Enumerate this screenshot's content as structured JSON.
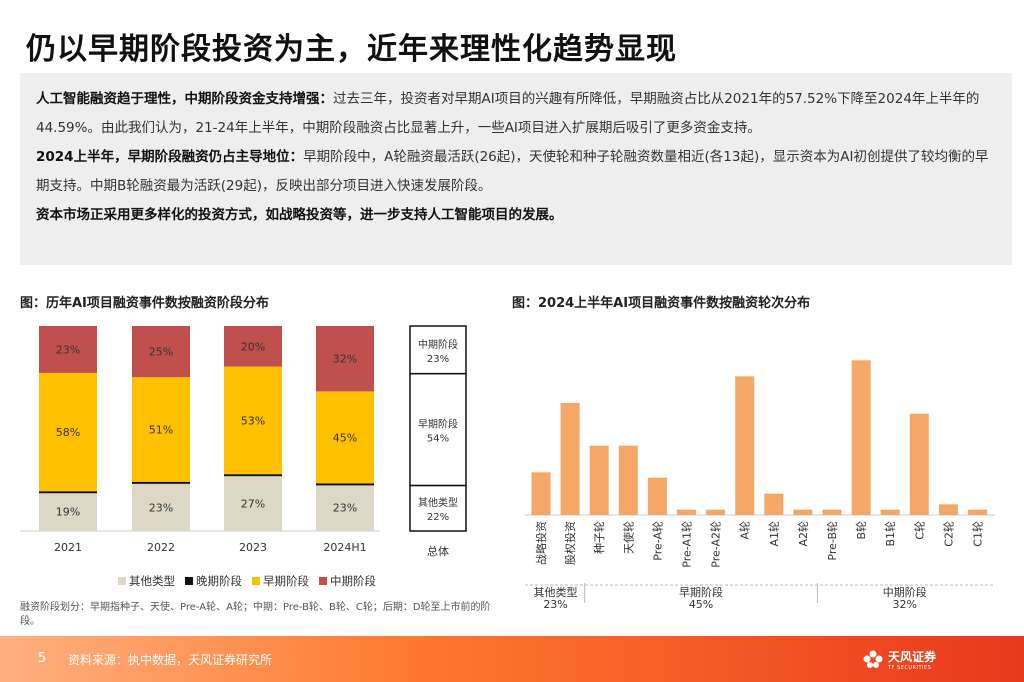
{
  "header": {
    "title": "仍以早期阶段投资为主，近年来理性化趋势显现"
  },
  "summary": {
    "p1_bold": "人工智能融资趋于理性，中期阶段资金支持增强：",
    "p1_text": "过去三年，投资者对早期AI项目的兴趣有所降低，早期融资占比从2021年的57.52%下降至2024年上半年的44.59%。由此我们认为，21-24年上半年，中期阶段融资占比显著上升，一些AI项目进入扩展期后吸引了更多资金支持。",
    "p2_bold": "2024上半年，早期阶段融资仍占主导地位：",
    "p2_text": "早期阶段中，A轮融资最活跃(26起)，天使轮和种子轮融资数量相近(各13起)，显示资本为AI初创提供了较均衡的早期支持。中期B轮融资最为活跃(29起)，反映出部分项目进入快速发展阶段。",
    "p3_bold": "资本市场正采用更多样化的投资方式，如战略投资等，进一步支持人工智能项目的发展。"
  },
  "chart1_title": "图：历年AI项目融资事件数按融资阶段分布",
  "chart2_title": "图：2024上半年AI项目融资事件数按融资轮次分布",
  "legend": [
    {
      "label": "其他类型",
      "color": "#ddd8c6"
    },
    {
      "label": "晚期阶段",
      "color": "#111111"
    },
    {
      "label": "早期阶段",
      "color": "#ffc000"
    },
    {
      "label": "中期阶段",
      "color": "#c0504d"
    }
  ],
  "footnote": "融资阶段划分：早期指种子、天使、Pre-A轮、A轮；中期：Pre-B轮、B轮、C轮；后期：D轮至上市前的阶段。",
  "footer": {
    "page": "5",
    "source": "资料来源：执中数据，天风证券研究所",
    "logo_cn": "天风证券",
    "logo_en": "TF SECURITIES"
  },
  "chart_data": [
    {
      "type": "bar",
      "stacked": true,
      "categories": [
        "2021",
        "2022",
        "2023",
        "2024H1"
      ],
      "series": [
        {
          "name": "其他类型",
          "color": "#ddd8c6",
          "values": [
            19,
            23,
            27,
            23
          ],
          "labels": [
            "19%",
            "23%",
            "27%",
            "23%"
          ]
        },
        {
          "name": "晚期阶段",
          "color": "#111111",
          "values": [
            0.5,
            1,
            1,
            0.3
          ],
          "labels": [
            "0%",
            "1%",
            "1%",
            "0%"
          ]
        },
        {
          "name": "早期阶段",
          "color": "#ffc000",
          "values": [
            58,
            51,
            53,
            45
          ],
          "labels": [
            "58%",
            "51%",
            "53%",
            "45%"
          ]
        },
        {
          "name": "中期阶段",
          "color": "#c0504d",
          "values": [
            23,
            25,
            20,
            32
          ],
          "labels": [
            "23%",
            "25%",
            "20%",
            "32%"
          ]
        }
      ],
      "total": {
        "category": "总体",
        "segments": [
          {
            "stage": "其他类型",
            "value": 22,
            "label_name": "其他类型",
            "label_pct": "22%"
          },
          {
            "stage": "早期阶段",
            "value": 54,
            "label_name": "早期阶段",
            "label_pct": "54%"
          },
          {
            "stage": "中期阶段",
            "value": 23,
            "label_name": "中期阶段",
            "label_pct": "23%"
          }
        ]
      }
    },
    {
      "type": "bar",
      "categories": [
        "战略投资",
        "股权投资",
        "种子轮",
        "天使轮",
        "Pre-A轮",
        "Pre-A1轮",
        "Pre-A2轮",
        "A轮",
        "A1轮",
        "A2轮",
        "Pre-B轮",
        "B轮",
        "B1轮",
        "C轮",
        "C2轮",
        "C1轮"
      ],
      "values": [
        8,
        21,
        13,
        13,
        7,
        1,
        1,
        26,
        4,
        1,
        1,
        29,
        1,
        19,
        2,
        1
      ],
      "color": "#f4a766",
      "groups": [
        {
          "name": "其他类型",
          "pct": "23%",
          "from": 0,
          "to": 1
        },
        {
          "name": "早期阶段",
          "pct": "45%",
          "from": 2,
          "to": 9
        },
        {
          "name": "中期阶段",
          "pct": "32%",
          "from": 10,
          "to": 15
        }
      ]
    }
  ]
}
